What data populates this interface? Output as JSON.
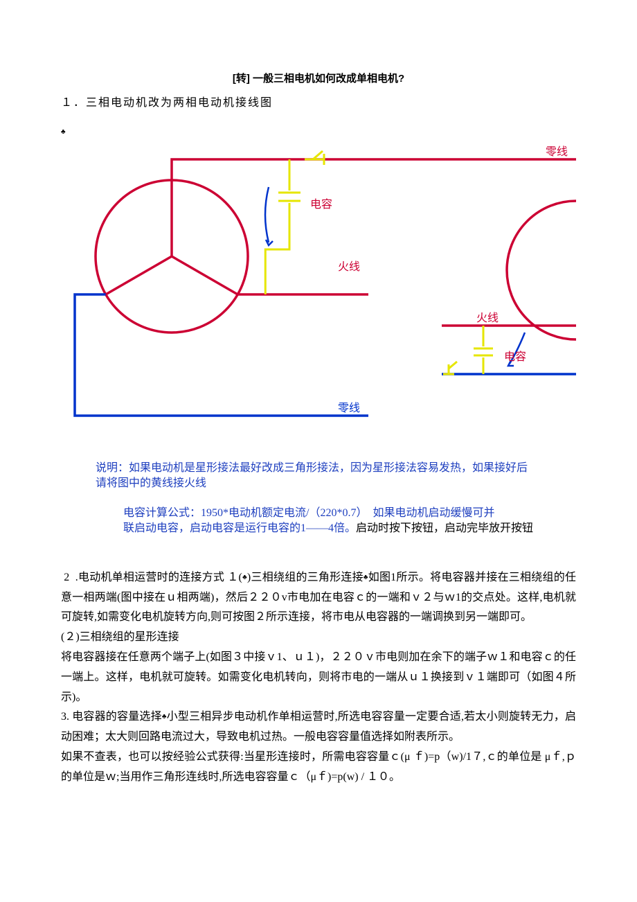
{
  "title": "[转] 一般三相电机如何改成单相电机?",
  "section1_heading": "１．三相电动机改为两相电动机接线图",
  "diagram": {
    "colors": {
      "wire_red": "#cc0033",
      "wire_blue": "#0033cc",
      "wire_yellow": "#e6e600",
      "bg": "#ffffff",
      "caption_blue": "#1e3fbf"
    },
    "labels": {
      "zero_line": "零线",
      "fire_line": "火线",
      "capacitor": "电容"
    },
    "caption1": "说明：如果电动机是星形接法最好改成三角形接法，因为星形接法容易发热，如果接好后",
    "caption1b": "请将图中的黄线接火线",
    "caption2a": "电容计算公式：1950*电动机额定电流/（220*0.7）  如果电动机启动缓慢可并",
    "caption2b": "联启动电容，启动电容是运行电容的1——4倍。",
    "caption2c": "启动时按下按钮，启动完毕放开按钮"
  },
  "para2a": " 2  .电动机单相运营时的连接方式 １(",
  "para2a_end": ")三相绕组的三角形连接",
  "para2a_tail": "如图1所示。将电容器并接在三相绕组的任意一相两端(图中接在ｕ相两端)，然后２２０v市电加在电容ｃ的一端和ｖ２与ｗ1的交点处。这样,电机就可旋转,如需变化电机旋转方向,则可按图２所示连接，将市电从电容器的一端调换到另一端即可。",
  "para2b_head": "(２)三相绕组的星形连接",
  "para2b_body": "将电容器接在任意两个端子上(如图３中接ｖ1、ｕ１)，２２０ｖ市电则加在余下的端子ｗ１和电容ｃ的任一端上。这样，电机就可旋转。如需变化电机转向，则将市电的一端从ｕ１换接到ｖ１端即可（如图４所示)。",
  "para3_head": "3. 电容器的容量选择",
  "para3_body": "小型三相异步电动机作单相运营时,所选电容容量一定要合适,若太小则旋转无力，启动困难；太大则回路电流过大，导致电机过热。一般电容容量值选择如附表所示。",
  "para4": "如果不查表，也可以按经验公式获得:当星形连接时，所需电容容量ｃ(μ ｆ)=p（w)/1７,ｃ的单位是 μｆ,ｐ的单位是ｗ;当用作三角形连线时,所选电容容量ｃ（μｆ)=p(w) / １０。"
}
